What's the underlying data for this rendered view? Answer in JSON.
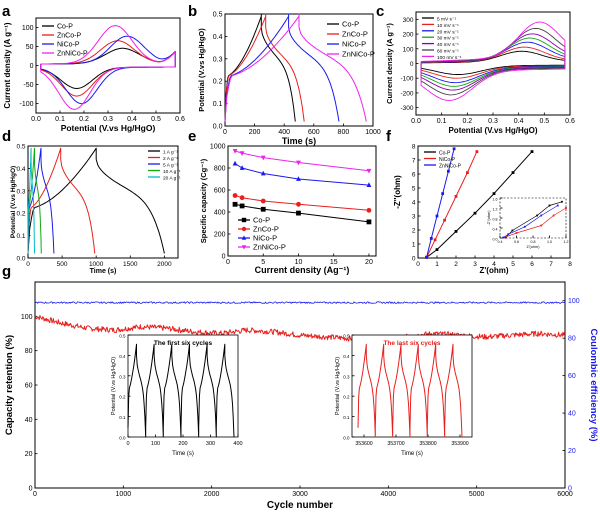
{
  "colors": {
    "black": "#000000",
    "red": "#e8201e",
    "blue": "#1a1aee",
    "magenta": "#ee22ee",
    "green": "#11aa11",
    "cyan": "#00bbcc",
    "purple": "#8800aa",
    "darkgray": "#444444"
  },
  "chart_data": [
    {
      "panel_label": "a",
      "type": "line",
      "xlabel": "Potential (V.vs Hg/HgO)",
      "ylabel": "Current density (A g⁻¹)",
      "xlim": [
        0.0,
        0.6
      ],
      "ylim": [
        -125,
        125
      ],
      "xticks": [
        "0.0",
        "0.1",
        "0.2",
        "0.3",
        "0.4",
        "0.5",
        "0.6"
      ],
      "yticks": [
        "-100",
        "-50",
        "0",
        "50",
        "100"
      ],
      "legend": [
        "Co-P",
        "ZnCo-P",
        "NiCo-P",
        "ZnNiCo-P"
      ],
      "series": [
        {
          "name": "Co-P",
          "color": "#000000",
          "anodic_peak": [
            0.36,
            40
          ],
          "cathodic_peak": [
            0.17,
            -55
          ]
        },
        {
          "name": "ZnCo-P",
          "color": "#e8201e",
          "anodic_peak": [
            0.34,
            60
          ],
          "cathodic_peak": [
            0.17,
            -75
          ]
        },
        {
          "name": "NiCo-P",
          "color": "#1a1aee",
          "anodic_peak": [
            0.38,
            72
          ],
          "cathodic_peak": [
            0.19,
            -95
          ]
        },
        {
          "name": "ZnNiCo-P",
          "color": "#ee22ee",
          "anodic_peak": [
            0.33,
            100
          ],
          "cathodic_peak": [
            0.16,
            -110
          ]
        }
      ]
    },
    {
      "panel_label": "b",
      "type": "line",
      "xlabel": "Time (s)",
      "ylabel": "Potential (V.vs Hg/HgO)",
      "xlim": [
        0,
        1000
      ],
      "ylim": [
        0.0,
        0.5
      ],
      "xticks": [
        "0",
        "200",
        "400",
        "600",
        "800",
        "1000"
      ],
      "yticks": [
        "0.0",
        "0.1",
        "0.2",
        "0.3",
        "0.4",
        "0.5"
      ],
      "legend": [
        "Co-P",
        "ZnCo-P",
        "NiCo-P",
        "ZnNiCo-P"
      ],
      "series": [
        {
          "name": "Co-P",
          "color": "#000000",
          "charge_end_s": 245,
          "discharge_end_s": 475
        },
        {
          "name": "ZnCo-P",
          "color": "#e8201e",
          "charge_end_s": 275,
          "discharge_end_s": 535
        },
        {
          "name": "NiCo-P",
          "color": "#1a1aee",
          "charge_end_s": 430,
          "discharge_end_s": 770
        },
        {
          "name": "ZnNiCo-P",
          "color": "#ee22ee",
          "charge_end_s": 500,
          "discharge_end_s": 955
        }
      ]
    },
    {
      "panel_label": "c",
      "type": "line",
      "xlabel": "Potential (V.vs Hg/HgO)",
      "ylabel": "Current density (A g⁻¹)",
      "xlim": [
        0.0,
        0.6
      ],
      "ylim": [
        -350,
        350
      ],
      "xticks": [
        "0.0",
        "0.1",
        "0.2",
        "0.3",
        "0.4",
        "0.5",
        "0.6"
      ],
      "yticks": [
        "-300",
        "-200",
        "-100",
        "0",
        "100",
        "200",
        "300"
      ],
      "legend": [
        "5 mV s⁻¹",
        "10 mV s⁻¹",
        "20 mV s⁻¹",
        "30 mV s⁻¹",
        "40 mV s⁻¹",
        "60 mV s⁻¹",
        "100 mV s⁻¹"
      ],
      "series": [
        {
          "name": "5 mV s⁻¹",
          "color": "#000000",
          "scale": 0.3
        },
        {
          "name": "10 mV s⁻¹",
          "color": "#e8201e",
          "scale": 0.4
        },
        {
          "name": "20 mV s⁻¹",
          "color": "#1a1aee",
          "scale": 0.52
        },
        {
          "name": "30 mV s⁻¹",
          "color": "#11aa11",
          "scale": 0.62
        },
        {
          "name": "40 mV s⁻¹",
          "color": "#8800aa",
          "scale": 0.72
        },
        {
          "name": "60 mV s⁻¹",
          "color": "#444444",
          "scale": 0.85
        },
        {
          "name": "100 mV s⁻¹",
          "color": "#ee22ee",
          "scale": 1.0
        }
      ]
    },
    {
      "panel_label": "d",
      "type": "line",
      "xlabel": "Time (s)",
      "ylabel": "Potential (V.vs Hg/HgO)",
      "xlim": [
        0,
        2200
      ],
      "ylim": [
        0.0,
        0.5
      ],
      "xticks": [
        "0",
        "500",
        "1000",
        "1500",
        "2000"
      ],
      "yticks": [
        "0.0",
        "0.1",
        "0.2",
        "0.3",
        "0.4",
        "0.5"
      ],
      "legend": [
        "1 A g⁻¹",
        "2 A g⁻¹",
        "5 A g⁻¹",
        "10 A g⁻¹",
        "20 A g⁻¹"
      ],
      "series": [
        {
          "name": "1 A g⁻¹",
          "color": "#000000",
          "charge_end_s": 1000,
          "discharge_end_s": 2000
        },
        {
          "name": "2 A g⁻¹",
          "color": "#e8201e",
          "charge_end_s": 480,
          "discharge_end_s": 980
        },
        {
          "name": "5 A g⁻¹",
          "color": "#1a1aee",
          "charge_end_s": 190,
          "discharge_end_s": 380
        },
        {
          "name": "10 A g⁻¹",
          "color": "#11aa11",
          "charge_end_s": 95,
          "discharge_end_s": 195
        },
        {
          "name": "20 A g⁻¹",
          "color": "#00bbcc",
          "charge_end_s": 45,
          "discharge_end_s": 95
        }
      ]
    },
    {
      "panel_label": "e",
      "type": "line",
      "xlabel": "Current density (Ag⁻¹)",
      "ylabel": "Specific capacity (Cg⁻¹)",
      "xlim": [
        0,
        21
      ],
      "ylim": [
        0,
        1000
      ],
      "xticks": [
        "0",
        "5",
        "10",
        "15",
        "20"
      ],
      "yticks": [
        "0",
        "200",
        "400",
        "600",
        "800",
        "1000"
      ],
      "x": [
        1,
        2,
        5,
        10,
        20
      ],
      "legend": [
        "Co-P",
        "ZnCo-P",
        "NiCo-P",
        "ZnNiCo-P"
      ],
      "series": [
        {
          "name": "Co-P",
          "color": "#000000",
          "marker": "square",
          "values": [
            470,
            455,
            425,
            390,
            310
          ]
        },
        {
          "name": "ZnCo-P",
          "color": "#e8201e",
          "marker": "circle",
          "values": [
            550,
            530,
            500,
            470,
            415
          ]
        },
        {
          "name": "NiCo-P",
          "color": "#1a1aee",
          "marker": "triangle",
          "values": [
            840,
            800,
            750,
            700,
            645
          ]
        },
        {
          "name": "ZnNiCo-P",
          "color": "#ee22ee",
          "marker": "down-triangle",
          "values": [
            955,
            935,
            895,
            850,
            775
          ]
        }
      ]
    },
    {
      "panel_label": "f",
      "type": "scatter",
      "xlabel": "Z'(ohm)",
      "ylabel": "-Z''(ohm)",
      "xlim": [
        0,
        8
      ],
      "ylim": [
        0,
        8
      ],
      "xticks": [
        "0",
        "1",
        "2",
        "3",
        "4",
        "5",
        "6",
        "7",
        "8"
      ],
      "yticks": [
        "0",
        "1",
        "2",
        "3",
        "4",
        "5",
        "6",
        "7",
        "8"
      ],
      "legend": [
        "Co-P",
        "NiCo-P",
        "ZnNiCo-P"
      ],
      "series": [
        {
          "name": "Co-P",
          "color": "#000000",
          "x": [
            0.45,
            1.0,
            2.0,
            3.0,
            4.0,
            5.0,
            6.0
          ],
          "y": [
            0.05,
            0.6,
            1.9,
            3.2,
            4.6,
            6.1,
            7.6
          ]
        },
        {
          "name": "NiCo-P",
          "color": "#e8201e",
          "x": [
            0.45,
            0.9,
            1.4,
            2.0,
            2.6,
            3.1
          ],
          "y": [
            0.05,
            1.3,
            2.7,
            4.4,
            6.1,
            7.6
          ]
        },
        {
          "name": "ZnNiCo-P",
          "color": "#1a1aee",
          "x": [
            0.45,
            0.7,
            1.0,
            1.3,
            1.6,
            1.9
          ],
          "y": [
            0.05,
            1.4,
            3.0,
            4.6,
            6.2,
            7.8
          ]
        }
      ],
      "inset": {
        "xlabel": "Z'(ohm)",
        "ylabel": "-Z''(ohm)",
        "xticks": [
          "0.4",
          "0.6",
          "0.8",
          "1.0",
          "1.2"
        ],
        "yticks": [
          "0.0",
          "0.4",
          "0.8",
          "1.2",
          "1.6"
        ],
        "xlim": [
          0.4,
          1.2
        ],
        "ylim": [
          0.0,
          1.6
        ]
      }
    },
    {
      "panel_label": "g",
      "type": "line",
      "xlabel": "Cycle number",
      "ylabel": "Capacity retention (%)",
      "y2label": "Coulombic efficiency (%)",
      "xlim": [
        0,
        6000
      ],
      "ylim": [
        0,
        120
      ],
      "y2lim": [
        0,
        110
      ],
      "xticks": [
        "0",
        "1000",
        "2000",
        "3000",
        "4000",
        "5000",
        "6000"
      ],
      "yticks": [
        "0",
        "20",
        "40",
        "60",
        "80",
        "100"
      ],
      "y2ticks": [
        "0",
        "20",
        "40",
        "60",
        "80",
        "100"
      ],
      "series": [
        {
          "name": "Capacity retention",
          "axis": "left",
          "color": "#e8201e",
          "x": [
            0,
            300,
            600,
            900,
            1200,
            1500,
            1800,
            2100,
            2400,
            2700,
            3000,
            3300,
            3600,
            3900,
            4200,
            4500,
            4800,
            5100,
            5400,
            5700,
            6000
          ],
          "values": [
            100,
            96,
            93,
            92,
            94,
            93,
            91,
            90,
            92,
            91,
            89,
            88,
            87,
            86,
            88,
            90,
            89,
            88,
            89,
            90,
            89
          ]
        },
        {
          "name": "Coulombic efficiency",
          "axis": "right",
          "color": "#1a1aee",
          "x": [
            0,
            6000
          ],
          "values": [
            99,
            99
          ]
        }
      ],
      "insets": [
        {
          "title": "The first six cycles",
          "title_color": "#000000",
          "line_color": "#000000",
          "xlabel": "Time (s)",
          "ylabel": "Potential (V.vs Hg/HgO)",
          "xticks": [
            "0",
            "100",
            "200",
            "300",
            "400"
          ],
          "yticks": [
            "0.0",
            "0.1",
            "0.2",
            "0.3",
            "0.4",
            "0.5"
          ]
        },
        {
          "title": "The last six cycles",
          "title_color": "#e8201e",
          "line_color": "#e8201e",
          "xlabel": "Time (s)",
          "ylabel": "Potential (V.vs Hg/HgO)",
          "xticks": [
            "353600",
            "353700",
            "353800",
            "353900"
          ],
          "yticks": [
            "0.0",
            "0.1",
            "0.2",
            "0.3",
            "0.4",
            "0.5"
          ]
        }
      ]
    }
  ]
}
